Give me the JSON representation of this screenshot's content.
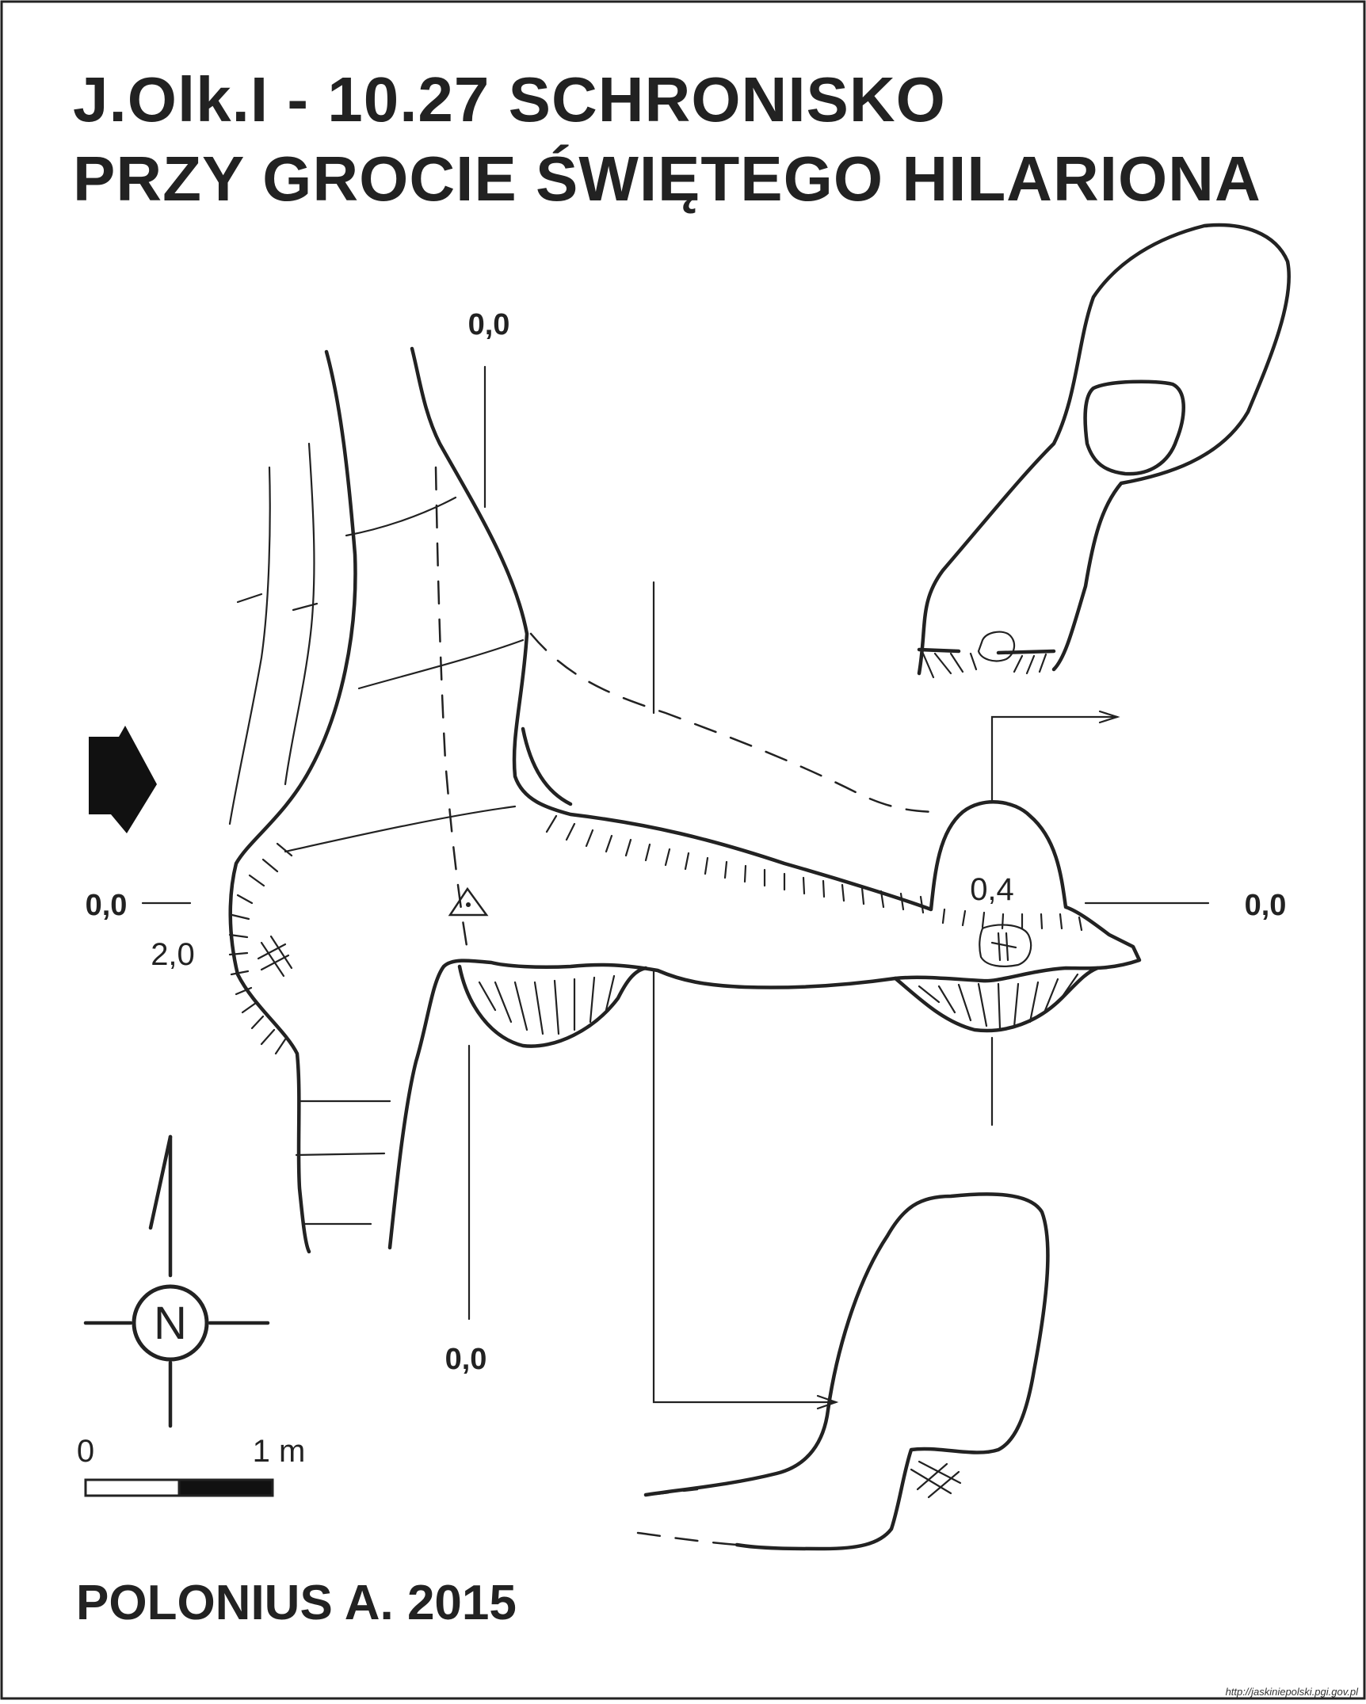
{
  "title": {
    "line1": "J.Olk.I - 10.27  SCHRONISKO",
    "line2": "PRZY GROCIE ŚWIĘTEGO HILARIONA"
  },
  "labels": {
    "top_section": "0,0",
    "left_section": "0,0",
    "right_section": "0,0",
    "bottom_section": "0,0",
    "height_left": "2,0",
    "height_right": "0,4"
  },
  "compass": {
    "letter": "N"
  },
  "scale": {
    "zero": "0",
    "one": "1 m"
  },
  "author": "POLONIUS A. 2015",
  "source": "http://jaskiniepolski.pgi.gov.pl",
  "colors": {
    "ink": "#222222",
    "paper": "#ffffff"
  }
}
